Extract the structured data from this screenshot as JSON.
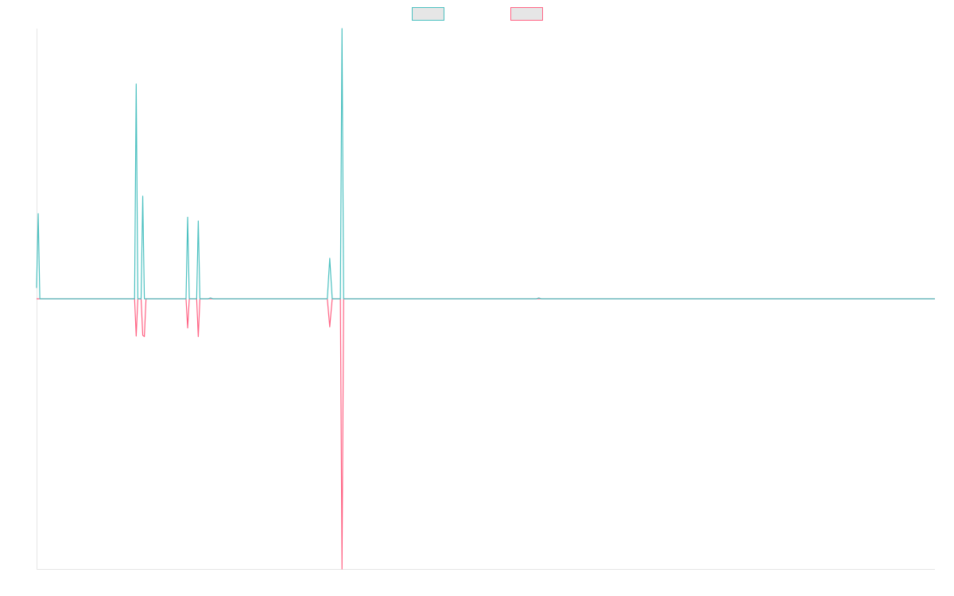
{
  "chart_data": {
    "type": "line",
    "title": "",
    "xlabel": "",
    "ylabel": "",
    "grid": false,
    "legend_position": "top",
    "x_range": [
      0,
      1100
    ],
    "ylim": [
      -1,
      1
    ],
    "series": [
      {
        "color": "#4bc0c0",
        "legend_fill": "#e6e6e6",
        "points": [
          [
            0,
            0.04
          ],
          [
            2,
            0.315
          ],
          [
            4,
            0
          ],
          [
            118,
            0
          ],
          [
            120,
            0
          ],
          [
            122,
            0.795
          ],
          [
            124,
            0
          ],
          [
            128,
            0
          ],
          [
            130,
            0.38
          ],
          [
            132,
            0
          ],
          [
            183,
            0
          ],
          [
            185,
            0.302
          ],
          [
            187,
            0
          ],
          [
            196,
            0
          ],
          [
            198,
            0.288
          ],
          [
            200,
            0
          ],
          [
            210,
            0
          ],
          [
            213,
            0.003
          ],
          [
            216,
            0
          ],
          [
            356,
            0
          ],
          [
            359,
            0.15
          ],
          [
            362,
            0
          ],
          [
            372,
            0
          ],
          [
            374,
            1.0
          ],
          [
            376,
            0
          ],
          [
            378,
            0
          ],
          [
            612,
            0
          ],
          [
            615,
            0.003
          ],
          [
            618,
            0
          ],
          [
            1100,
            0
          ]
        ]
      },
      {
        "color": "#ff6384",
        "legend_fill": "#e6e6e6",
        "points": [
          [
            0,
            0
          ],
          [
            118,
            0
          ],
          [
            120,
            0
          ],
          [
            122,
            -0.138
          ],
          [
            124,
            0
          ],
          [
            128,
            0
          ],
          [
            130,
            -0.135
          ],
          [
            132,
            -0.14
          ],
          [
            134,
            0
          ],
          [
            183,
            0
          ],
          [
            185,
            -0.108
          ],
          [
            187,
            0
          ],
          [
            196,
            0
          ],
          [
            198,
            -0.14
          ],
          [
            200,
            0
          ],
          [
            356,
            0
          ],
          [
            359,
            -0.104
          ],
          [
            362,
            0
          ],
          [
            372,
            0
          ],
          [
            374,
            -1.0
          ],
          [
            376,
            0
          ],
          [
            1100,
            0
          ]
        ]
      }
    ]
  }
}
